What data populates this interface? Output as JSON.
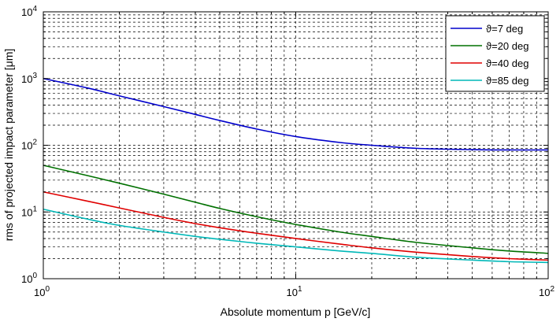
{
  "chart_data": {
    "type": "line",
    "xlabel": "Absolute momentum p [GeV/c]",
    "ylabel": "rms of projected impact parameter [μm]",
    "x_scale": "log",
    "y_scale": "log",
    "xlim": [
      1,
      100
    ],
    "ylim": [
      1,
      10000
    ],
    "grid": true,
    "legend_position": "top-right",
    "x_ticks": [
      {
        "value": 1,
        "base": "10",
        "exp": "0"
      },
      {
        "value": 10,
        "base": "10",
        "exp": "1"
      },
      {
        "value": 100,
        "base": "10",
        "exp": "2"
      }
    ],
    "y_ticks": [
      {
        "value": 1,
        "base": "10",
        "exp": "0"
      },
      {
        "value": 10,
        "base": "10",
        "exp": "1"
      },
      {
        "value": 100,
        "base": "10",
        "exp": "2"
      },
      {
        "value": 1000,
        "base": "10",
        "exp": "3"
      },
      {
        "value": 10000,
        "base": "10",
        "exp": "4"
      }
    ],
    "series": [
      {
        "name": "ϑ=7 deg",
        "color": "#0000cc",
        "x": [
          1,
          1.5,
          2,
          3,
          4,
          5,
          7,
          10,
          15,
          20,
          30,
          50,
          70,
          100
        ],
        "y": [
          1000,
          720,
          550,
          380,
          290,
          235,
          175,
          135,
          110,
          100,
          90,
          86,
          85,
          85
        ]
      },
      {
        "name": "ϑ=20 deg",
        "color": "#007000",
        "x": [
          1,
          1.5,
          2,
          3,
          4,
          5,
          7,
          10,
          15,
          20,
          30,
          50,
          70,
          100
        ],
        "y": [
          50,
          35,
          27,
          18.5,
          14,
          11.3,
          8.5,
          6.5,
          5.0,
          4.3,
          3.5,
          2.9,
          2.6,
          2.4
        ]
      },
      {
        "name": "ϑ=40 deg",
        "color": "#e00000",
        "x": [
          1,
          1.5,
          2,
          3,
          4,
          5,
          7,
          10,
          15,
          20,
          30,
          50,
          70,
          100
        ],
        "y": [
          20,
          14.5,
          11.5,
          8.3,
          6.7,
          5.8,
          4.8,
          4.0,
          3.3,
          2.9,
          2.5,
          2.15,
          2.0,
          1.9
        ]
      },
      {
        "name": "ϑ=85 deg",
        "color": "#00b8b8",
        "x": [
          1,
          1.5,
          2,
          3,
          4,
          5,
          7,
          10,
          15,
          20,
          30,
          50,
          70,
          100
        ],
        "y": [
          11,
          7.8,
          6.3,
          5.0,
          4.3,
          3.9,
          3.4,
          3.0,
          2.6,
          2.4,
          2.1,
          1.9,
          1.8,
          1.75
        ]
      }
    ]
  }
}
